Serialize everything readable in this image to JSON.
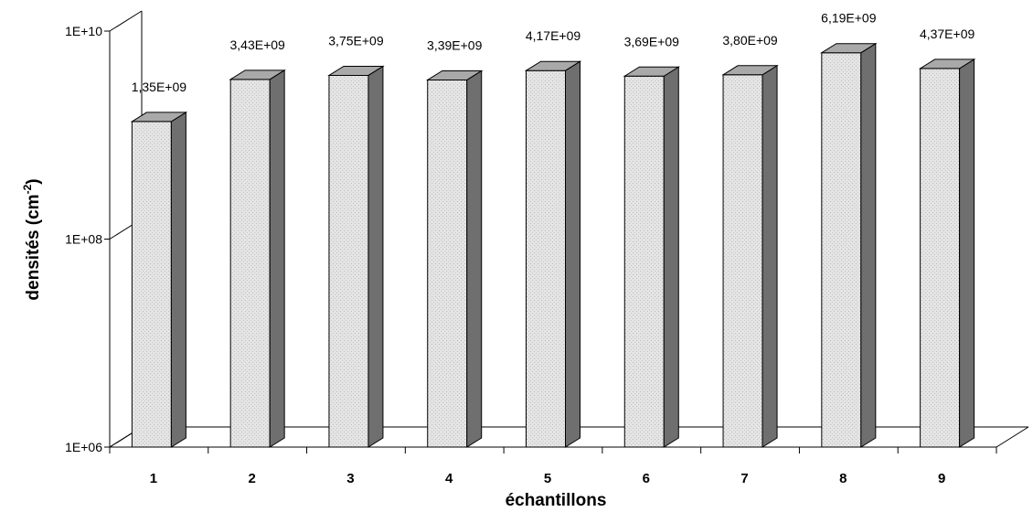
{
  "chart_data": {
    "type": "bar",
    "three_d": true,
    "yscale": "log",
    "categories": [
      "1",
      "2",
      "3",
      "4",
      "5",
      "6",
      "7",
      "8",
      "9"
    ],
    "values": [
      1350000000,
      3430000000,
      3750000000,
      3390000000,
      4170000000,
      3690000000,
      3800000000,
      6190000000,
      4370000000
    ],
    "data_labels": [
      "1,35E+09",
      "3,43E+09",
      "3,75E+09",
      "3,39E+09",
      "4,17E+09",
      "3,69E+09",
      "3,80E+09",
      "6,19E+09",
      "4,37E+09"
    ],
    "xlabel": "échantillons",
    "ylabel": {
      "main": "densités (cm",
      "superscript": "-2",
      "close": ")"
    },
    "ylim": [
      1000000,
      10000000000
    ],
    "y_ticks": [
      1000000,
      100000000,
      10000000000
    ],
    "y_tick_labels": [
      "1E+06",
      "1E+08",
      "1E+10"
    ],
    "grid": false,
    "legend": "none",
    "colors": {
      "bar_front": "#e2e2e2",
      "bar_side": "#6f6f6f",
      "bar_top": "#a9a9a9",
      "outline": "#000000"
    }
  }
}
